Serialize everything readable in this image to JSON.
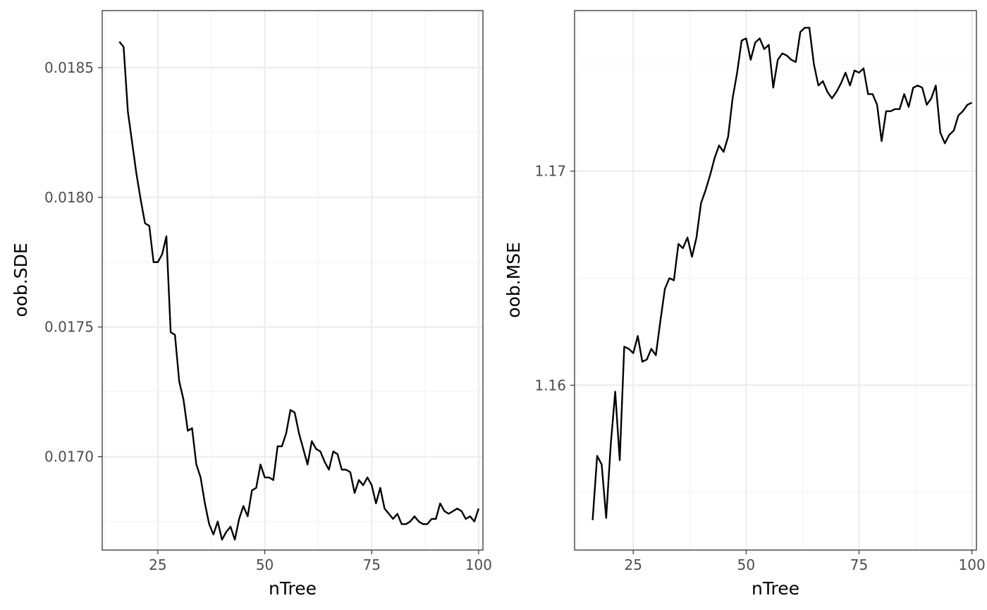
{
  "chart_data": [
    {
      "type": "line",
      "xlabel": "nTree",
      "ylabel": "oob.SDE",
      "xlim": [
        12,
        101
      ],
      "ylim": [
        0.01664,
        0.01872
      ],
      "x_ticks": [
        25,
        50,
        75,
        100
      ],
      "y_ticks": [
        0.017,
        0.0175,
        0.018,
        0.0185
      ],
      "y_tick_labels": [
        "0.0170",
        "0.0175",
        "0.0180",
        "0.0185"
      ],
      "grid": true,
      "theme": "bw",
      "line_color": "#000000",
      "x": [
        16,
        17,
        18,
        19,
        20,
        21,
        22,
        23,
        24,
        25,
        26,
        27,
        28,
        29,
        30,
        31,
        32,
        33,
        34,
        35,
        36,
        37,
        38,
        39,
        40,
        41,
        42,
        43,
        44,
        45,
        46,
        47,
        48,
        49,
        50,
        51,
        52,
        53,
        54,
        55,
        56,
        57,
        58,
        59,
        60,
        61,
        62,
        63,
        64,
        65,
        66,
        67,
        68,
        69,
        70,
        71,
        72,
        73,
        74,
        75,
        76,
        77,
        78,
        79,
        80,
        81,
        82,
        83,
        84,
        85,
        86,
        87,
        88,
        89,
        90,
        91,
        92,
        93,
        94,
        95,
        96,
        97,
        98,
        99,
        100
      ],
      "series": [
        {
          "values": [
            0.0186,
            0.01858,
            0.01833,
            0.01821,
            0.01809,
            0.01799,
            0.0179,
            0.01789,
            0.01775,
            0.01775,
            0.01778,
            0.01785,
            0.01748,
            0.01747,
            0.01729,
            0.01722,
            0.0171,
            0.01711,
            0.01697,
            0.01692,
            0.01682,
            0.01674,
            0.0167,
            0.01675,
            0.01668,
            0.01671,
            0.01673,
            0.01668,
            0.01676,
            0.01681,
            0.01677,
            0.01687,
            0.01688,
            0.01697,
            0.01692,
            0.01692,
            0.01691,
            0.01704,
            0.01704,
            0.01709,
            0.01718,
            0.01717,
            0.01709,
            0.01703,
            0.01697,
            0.01706,
            0.01703,
            0.01702,
            0.01698,
            0.01695,
            0.01702,
            0.01701,
            0.01695,
            0.01695,
            0.01694,
            0.01686,
            0.01691,
            0.01689,
            0.01692,
            0.01689,
            0.01682,
            0.01688,
            0.0168,
            0.01678,
            0.01676,
            0.01678,
            0.01674,
            0.01674,
            0.01675,
            0.01677,
            0.01675,
            0.01674,
            0.01674,
            0.01676,
            0.01676,
            0.01682,
            0.01679,
            0.01678,
            0.01679,
            0.0168,
            0.01679,
            0.01676,
            0.01677,
            0.01675,
            0.0168
          ]
        }
      ]
    },
    {
      "type": "line",
      "xlabel": "nTree",
      "ylabel": "oob.MSE",
      "xlim": [
        12,
        101
      ],
      "ylim": [
        1.1523,
        1.1775
      ],
      "x_ticks": [
        25,
        50,
        75,
        100
      ],
      "y_ticks": [
        1.16,
        1.17
      ],
      "y_tick_labels": [
        "1.16",
        "1.17"
      ],
      "grid": true,
      "theme": "bw",
      "line_color": "#000000",
      "x": [
        16,
        17,
        18,
        19,
        20,
        21,
        22,
        23,
        24,
        25,
        26,
        27,
        28,
        29,
        30,
        31,
        32,
        33,
        34,
        35,
        36,
        37,
        38,
        39,
        40,
        41,
        42,
        43,
        44,
        45,
        46,
        47,
        48,
        49,
        50,
        51,
        52,
        53,
        54,
        55,
        56,
        57,
        58,
        59,
        60,
        61,
        62,
        63,
        64,
        65,
        66,
        67,
        68,
        69,
        70,
        71,
        72,
        73,
        74,
        75,
        76,
        77,
        78,
        79,
        80,
        81,
        82,
        83,
        84,
        85,
        86,
        87,
        88,
        89,
        90,
        91,
        92,
        93,
        94,
        95,
        96,
        97,
        98,
        99,
        100
      ],
      "series": [
        {
          "values": [
            1.1537,
            1.1567,
            1.1563,
            1.1538,
            1.1572,
            1.1597,
            1.1565,
            1.1618,
            1.1617,
            1.1615,
            1.1623,
            1.1611,
            1.1612,
            1.1617,
            1.1614,
            1.163,
            1.1645,
            1.165,
            1.1649,
            1.1666,
            1.1664,
            1.1669,
            1.166,
            1.1669,
            1.1685,
            1.1691,
            1.1698,
            1.1706,
            1.1712,
            1.1709,
            1.1716,
            1.1734,
            1.1746,
            1.1761,
            1.1762,
            1.1752,
            1.176,
            1.1762,
            1.1757,
            1.1759,
            1.1739,
            1.1752,
            1.1755,
            1.1754,
            1.1752,
            1.1751,
            1.1765,
            1.1767,
            1.1767,
            1.175,
            1.174,
            1.1742,
            1.1737,
            1.1734,
            1.1737,
            1.1741,
            1.1746,
            1.174,
            1.1747,
            1.1746,
            1.1748,
            1.1736,
            1.1736,
            1.1731,
            1.1714,
            1.1728,
            1.1728,
            1.1729,
            1.1729,
            1.1736,
            1.173,
            1.1739,
            1.174,
            1.1739,
            1.1731,
            1.1734,
            1.174,
            1.1718,
            1.1713,
            1.1717,
            1.1719,
            1.1726,
            1.1728,
            1.1731,
            1.1732
          ]
        }
      ]
    }
  ]
}
